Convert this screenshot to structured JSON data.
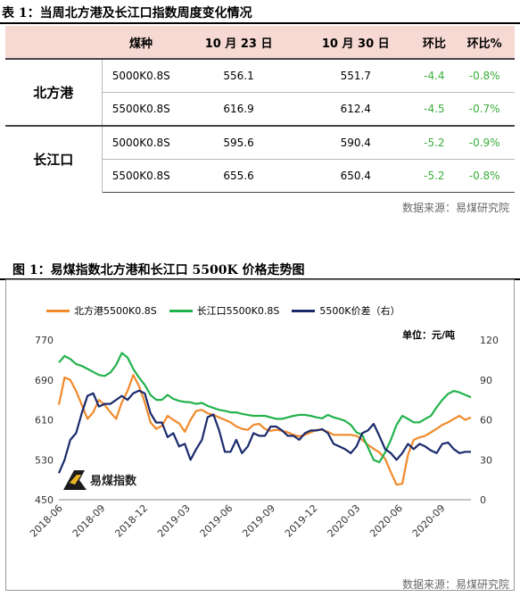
{
  "table": {
    "title": "表 1：当周北方港及长江口指数周度变化情况",
    "headers": [
      "",
      "煤种",
      "10 月 23 日",
      "10 月 30 日",
      "环比",
      "环比%"
    ],
    "groups": [
      {
        "port": "北方港",
        "rows": [
          {
            "coal": "5000K0.8S",
            "d1": "556.1",
            "d2": "551.7",
            "chg": "-4.4",
            "pct": "-0.8%"
          },
          {
            "coal": "5500K0.8S",
            "d1": "616.9",
            "d2": "612.4",
            "chg": "-4.5",
            "pct": "-0.7%"
          }
        ]
      },
      {
        "port": "长江口",
        "rows": [
          {
            "coal": "5000K0.8S",
            "d1": "595.6",
            "d2": "590.4",
            "chg": "-5.2",
            "pct": "-0.9%"
          },
          {
            "coal": "5500K0.8S",
            "d1": "655.6",
            "d2": "650.4",
            "chg": "-5.2",
            "pct": "-0.8%"
          }
        ]
      }
    ],
    "source": "数据来源：易煤研究院"
  },
  "chart": {
    "title": "图 1：易煤指数北方港和长江口 5500K 价格走势图",
    "unit": "单位：元/吨",
    "source": "数据来源：易煤研究院",
    "logo_text": "易煤指数"
  },
  "chart_data": {
    "type": "line",
    "left_axis": {
      "ylim": [
        450,
        770
      ],
      "ticks": [
        "450",
        "530",
        "610",
        "690",
        "770"
      ]
    },
    "right_axis": {
      "ylim": [
        0,
        120
      ],
      "ticks": [
        "0",
        "30",
        "60",
        "90",
        "120"
      ]
    },
    "x_ticks": [
      "2018-06",
      "2018-09",
      "2018-12",
      "2019-03",
      "2019-06",
      "2019-09",
      "2019-12",
      "2020-03",
      "2020-06",
      "2020-09"
    ],
    "series": [
      {
        "name": "北方港5500K0.8S",
        "color": "#f08a2c",
        "axis": "left",
        "values": [
          640,
          695,
          690,
          668,
          640,
          612,
          625,
          650,
          640,
          625,
          612,
          645,
          668,
          700,
          678,
          645,
          605,
          592,
          598,
          618,
          610,
          603,
          586,
          610,
          628,
          630,
          623,
          620,
          615,
          610,
          605,
          597,
          592,
          590,
          600,
          602,
          592,
          588,
          590,
          588,
          585,
          580,
          577,
          580,
          585,
          590,
          590,
          586,
          580,
          580,
          580,
          580,
          578,
          570,
          560,
          552,
          545,
          532,
          505,
          480,
          482,
          540,
          570,
          575,
          578,
          585,
          592,
          600,
          605,
          612,
          618,
          610,
          615
        ]
      },
      {
        "name": "长江口5500K0.8S",
        "color": "#22b24c",
        "axis": "left",
        "values": [
          725,
          738,
          732,
          722,
          718,
          712,
          706,
          700,
          698,
          705,
          720,
          744,
          735,
          712,
          695,
          680,
          660,
          650,
          650,
          660,
          652,
          648,
          646,
          645,
          642,
          644,
          638,
          634,
          630,
          628,
          625,
          625,
          622,
          620,
          618,
          618,
          618,
          615,
          612,
          612,
          615,
          618,
          620,
          620,
          618,
          615,
          613,
          620,
          615,
          612,
          608,
          600,
          585,
          580,
          555,
          530,
          525,
          545,
          570,
          600,
          618,
          612,
          605,
          605,
          612,
          618,
          635,
          650,
          662,
          668,
          665,
          660,
          655
        ]
      },
      {
        "name": "5500K价差（右）",
        "color": "#1a2a6c",
        "axis": "right",
        "values": [
          20,
          30,
          45,
          50,
          65,
          78,
          80,
          70,
          72,
          72,
          75,
          78,
          75,
          80,
          82,
          80,
          65,
          58,
          58,
          47,
          50,
          40,
          42,
          30,
          38,
          45,
          62,
          64,
          52,
          36,
          36,
          45,
          35,
          40,
          50,
          48,
          48,
          55,
          55,
          52,
          48,
          48,
          45,
          50,
          52,
          52,
          53,
          50,
          42,
          40,
          38,
          35,
          40,
          50,
          52,
          57,
          48,
          38,
          35,
          30,
          35,
          42,
          38,
          42,
          40,
          37,
          35,
          42,
          43,
          38,
          35,
          36,
          36
        ]
      }
    ]
  }
}
